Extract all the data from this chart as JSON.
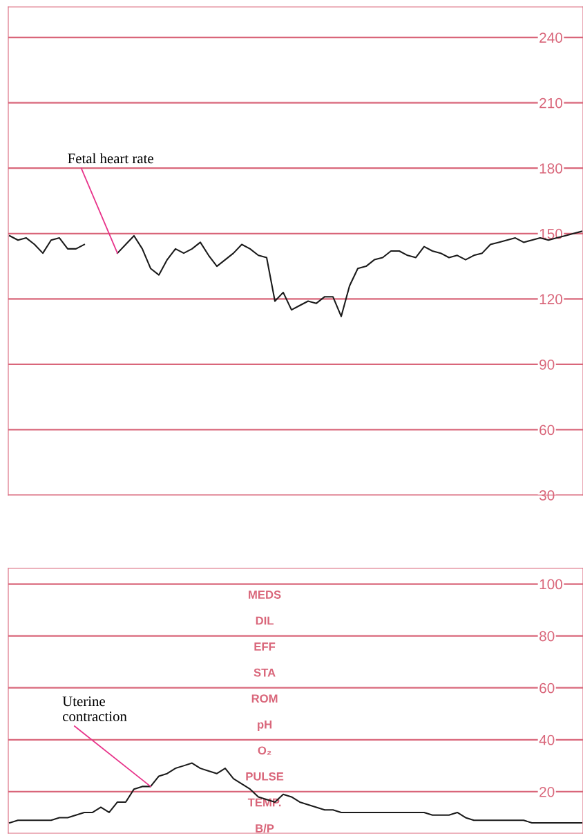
{
  "chart_data": [
    {
      "type": "line",
      "categories": [
        null,
        null,
        null,
        null,
        null,
        null,
        null,
        null,
        null,
        null,
        null,
        null,
        null,
        null,
        null,
        null,
        null,
        null,
        null,
        null,
        null,
        null,
        null,
        null,
        null,
        null,
        null,
        null,
        null,
        null,
        null,
        null,
        null,
        null,
        null,
        null,
        null,
        null,
        null,
        null,
        null,
        null,
        null,
        null,
        null,
        null,
        null,
        null,
        null,
        null,
        null,
        null,
        null,
        null,
        null,
        null,
        null,
        null,
        null,
        null,
        null,
        null,
        null,
        null,
        null,
        null,
        null,
        null,
        null,
        null
      ],
      "series": [
        {
          "color": "#1a1a1a",
          "values": [
            149,
            147,
            148,
            145,
            141,
            147,
            148,
            143,
            143,
            145,
            null,
            null,
            null,
            null,
            null,
            null,
            null,
            null,
            null,
            null,
            null,
            null,
            null,
            null,
            null,
            null,
            null,
            null,
            null,
            null,
            null,
            null,
            null,
            null,
            null,
            null,
            null,
            null,
            null,
            null,
            null,
            null,
            null,
            null,
            null,
            null,
            null,
            null,
            null,
            null,
            null,
            null,
            null,
            null,
            null,
            null,
            null,
            null,
            null,
            null,
            null,
            null,
            null,
            null,
            null,
            null,
            null,
            null,
            null,
            null
          ]
        },
        {
          "color": "#1a1a1a",
          "values": [
            null,
            null,
            null,
            null,
            null,
            null,
            null,
            null,
            null,
            null,
            null,
            null,
            null,
            141,
            145,
            149,
            143,
            134,
            131,
            138,
            143,
            141,
            143,
            146,
            140,
            135,
            138,
            141,
            145,
            143,
            140,
            139,
            119,
            123,
            115,
            117,
            119,
            118,
            121,
            121,
            112,
            126,
            134,
            135,
            138,
            139,
            142,
            142,
            140,
            139,
            144,
            142,
            141,
            139,
            140,
            138,
            140,
            141,
            145,
            146,
            147,
            148,
            146,
            147,
            148,
            147,
            148,
            149,
            150,
            151
          ]
        }
      ],
      "ylim": [
        30,
        254
      ],
      "yticks": [
        30,
        60,
        90,
        120,
        150,
        180,
        210,
        240
      ],
      "grid": "y",
      "tick_labels": "y",
      "annotations": [
        "Fetal heart rate"
      ]
    },
    {
      "type": "line",
      "categories": [
        null,
        null,
        null,
        null,
        null,
        null,
        null,
        null,
        null,
        null,
        null,
        null,
        null,
        null,
        null,
        null,
        null,
        null,
        null,
        null,
        null,
        null,
        null,
        null,
        null,
        null,
        null,
        null,
        null,
        null,
        null,
        null,
        null,
        null,
        null,
        null,
        null,
        null,
        null,
        null,
        null,
        null,
        null,
        null,
        null,
        null,
        null,
        null,
        null,
        null,
        null,
        null,
        null,
        null,
        null,
        null,
        null,
        null,
        null,
        null,
        null,
        null,
        null,
        null,
        null,
        null,
        null,
        null,
        null,
        null
      ],
      "series": [
        {
          "color": "#1a1a1a",
          "values": [
            8,
            9,
            9,
            9,
            9,
            9,
            10,
            10,
            11,
            12,
            12,
            14,
            12,
            16,
            16,
            21,
            22,
            22,
            26,
            27,
            29,
            30,
            31,
            29,
            28,
            27,
            29,
            25,
            23,
            21,
            18,
            17,
            16,
            19,
            18,
            16,
            15,
            14,
            13,
            13,
            12,
            12,
            12,
            12,
            12,
            12,
            12,
            12,
            12,
            12,
            12,
            11,
            11,
            11,
            12,
            10,
            9,
            9,
            9,
            9,
            9,
            9,
            9,
            8,
            8,
            8,
            8,
            8,
            8,
            8
          ]
        }
      ],
      "ylim": [
        4,
        106
      ],
      "yticks": [
        20,
        40,
        60,
        80,
        100
      ],
      "grid": "y",
      "tick_labels": "y",
      "annotations": [
        "Uterine\ncontraction",
        "MEDS",
        "DIL",
        "EFF",
        "STA",
        "ROM",
        "pH",
        "O₂",
        "PULSE",
        "TEMP.",
        "B/P"
      ]
    }
  ]
}
